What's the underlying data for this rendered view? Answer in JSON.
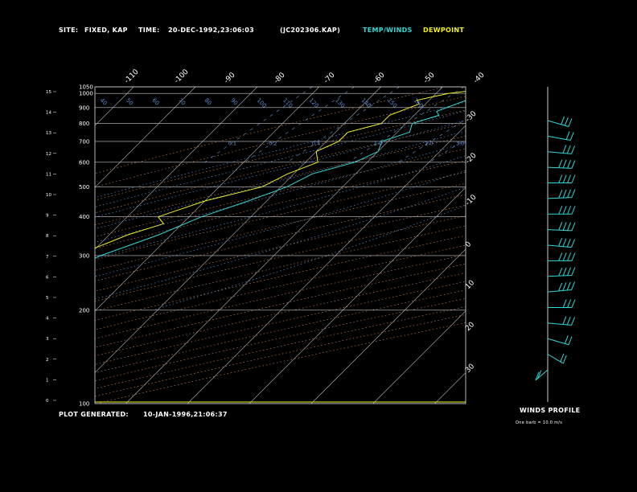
{
  "header": {
    "site_label": "SITE:",
    "site_value": "FIXED, KAP",
    "time_label": "TIME:",
    "time_value": "20-DEC-1992,23:06:03",
    "file_value": "(JC202306.KAP)",
    "temp_winds": "TEMP/WINDS",
    "dewpoint": "DEWPOINT"
  },
  "footer": {
    "plot_generated_label": "PLOT GENERATED:",
    "plot_generated_value": "10-JAN-1996,21:06:37",
    "winds_profile": "WINDS PROFILE",
    "barb_note": "One barb = 10.0 m/s"
  },
  "colors": {
    "temperature": "#30d8d8",
    "dewpoint": "#f0f020",
    "isobar": "#c8c8c8",
    "isotherm": "#c8c8c8",
    "dry_adiabat": "#c07850",
    "moist_adiabat": "#5a8ad0",
    "mixing_ratio": "#6a9ad8",
    "axis": "#e0e0e0"
  },
  "chart_data": {
    "type": "line",
    "diagram": "skew-T log-P",
    "ylim": [
      1050,
      400
    ],
    "pressure_levels": [
      1050,
      1000,
      900,
      800,
      700,
      600,
      500,
      400,
      300,
      200,
      100
    ],
    "pressure_tick_labels": [
      "1050",
      "1000",
      "900",
      "800",
      "700",
      "600",
      "500",
      "400",
      "300",
      "200",
      "100"
    ],
    "height_km_ticks": [
      "0",
      "1",
      "2",
      "3",
      "4",
      "5",
      "6",
      "7",
      "8",
      "9",
      "10",
      "11",
      "12",
      "13",
      "14",
      "15"
    ],
    "top_temperature_labels": [
      "-110",
      "-100",
      "-90",
      "-80",
      "-70",
      "-60",
      "-50",
      "-40"
    ],
    "right_temperature_labels": [
      "-30",
      "-20",
      "-10",
      "0",
      "10",
      "20",
      "30"
    ],
    "theta_labels_top": [
      "40",
      "50",
      "60",
      "70",
      "80",
      "90",
      "100",
      "110",
      "120",
      "130",
      "140",
      "150",
      "160"
    ],
    "mixing_ratio_labels": [
      "0.1",
      "0.2",
      "0.4",
      "1.0",
      "2.0",
      "3.0",
      "5.0",
      "8.0",
      "12.0"
    ],
    "series": [
      {
        "name": "TEMP/WINDS",
        "points": [
          [
            1050,
            3
          ],
          [
            1000,
            -9
          ],
          [
            975,
            -13
          ],
          [
            950,
            -14
          ],
          [
            925,
            -15
          ],
          [
            900,
            -16
          ],
          [
            875,
            -17
          ],
          [
            850,
            -16
          ],
          [
            800,
            -19
          ],
          [
            750,
            -18
          ],
          [
            700,
            -21
          ],
          [
            650,
            -20
          ],
          [
            600,
            -22
          ],
          [
            550,
            -27
          ],
          [
            500,
            -29
          ],
          [
            450,
            -33
          ],
          [
            400,
            -38
          ],
          [
            350,
            -42
          ],
          [
            300,
            -48
          ],
          [
            250,
            -53
          ],
          [
            200,
            -60
          ],
          [
            175,
            -62
          ],
          [
            150,
            -63
          ],
          [
            125,
            -64
          ],
          [
            100,
            -63
          ]
        ]
      },
      {
        "name": "DEWPOINT",
        "points": [
          [
            1050,
            -10
          ],
          [
            1000,
            -18
          ],
          [
            975,
            -20
          ],
          [
            950,
            -22
          ],
          [
            925,
            -21
          ],
          [
            900,
            -22
          ],
          [
            850,
            -24
          ],
          [
            800,
            -24
          ],
          [
            750,
            -28
          ],
          [
            700,
            -28
          ],
          [
            650,
            -30
          ],
          [
            600,
            -28
          ],
          [
            550,
            -31
          ],
          [
            500,
            -33
          ],
          [
            450,
            -40
          ],
          [
            400,
            -45
          ],
          [
            380,
            -43
          ],
          [
            350,
            -47
          ],
          [
            300,
            -52
          ],
          [
            250,
            -58
          ],
          [
            220,
            -62
          ],
          [
            200,
            -68
          ],
          [
            180,
            -75
          ],
          [
            150,
            -76
          ],
          [
            100,
            -75
          ]
        ]
      }
    ],
    "winds": [
      {
        "dir": 300,
        "spd": 25
      },
      {
        "dir": 290,
        "spd": 20
      },
      {
        "dir": 280,
        "spd": 30
      },
      {
        "dir": 275,
        "spd": 35
      },
      {
        "dir": 270,
        "spd": 40
      },
      {
        "dir": 265,
        "spd": 45
      },
      {
        "dir": 270,
        "spd": 45
      },
      {
        "dir": 275,
        "spd": 50
      },
      {
        "dir": 280,
        "spd": 55
      },
      {
        "dir": 270,
        "spd": 50
      },
      {
        "dir": 265,
        "spd": 40
      },
      {
        "dir": 260,
        "spd": 35
      },
      {
        "dir": 270,
        "spd": 30
      },
      {
        "dir": 280,
        "spd": 25
      },
      {
        "dir": 300,
        "spd": 20
      },
      {
        "dir": 320,
        "spd": 20
      },
      {
        "dir": 30,
        "spd": 15
      }
    ]
  }
}
